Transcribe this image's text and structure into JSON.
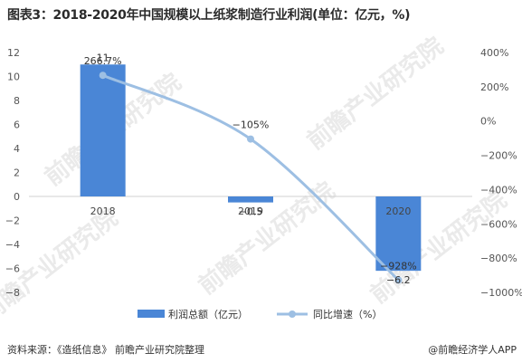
{
  "title": "图表3：2018-2020年中国规模以上纸浆制造行业利润(单位：亿元，%)",
  "source": "资料来源：《造纸信息》 前瞻产业研究院整理",
  "brand": "@前瞻经济学人APP",
  "watermark": "前瞻产业研究院",
  "chart_data": {
    "type": "bar",
    "categories": [
      "2018",
      "2019",
      "2020"
    ],
    "series": [
      {
        "name": "利润总额（亿元）",
        "type": "bar",
        "axis": "left",
        "values": [
          11,
          -0.5,
          -6.2
        ],
        "labels": [
          "11",
          "−0.5",
          "−6.2"
        ],
        "color": "#4a86d6"
      },
      {
        "name": "同比增速（%）",
        "type": "line",
        "axis": "right",
        "values": [
          266.7,
          -105,
          -928
        ],
        "labels": [
          "266.7%",
          "−105%",
          "−928%"
        ],
        "color": "#9dbfe3"
      }
    ],
    "ylim_left": [
      -8,
      12
    ],
    "yticks_left": [
      "12",
      "10",
      "8",
      "6",
      "4",
      "2",
      "0",
      "−2",
      "−4",
      "−6",
      "−8"
    ],
    "ylim_right": [
      -1000,
      400
    ],
    "yticks_right": [
      "400%",
      "200%",
      "0%",
      "−200%",
      "−400%",
      "−600%",
      "−800%",
      "−1000%"
    ],
    "grid": false,
    "legend_position": "bottom"
  }
}
